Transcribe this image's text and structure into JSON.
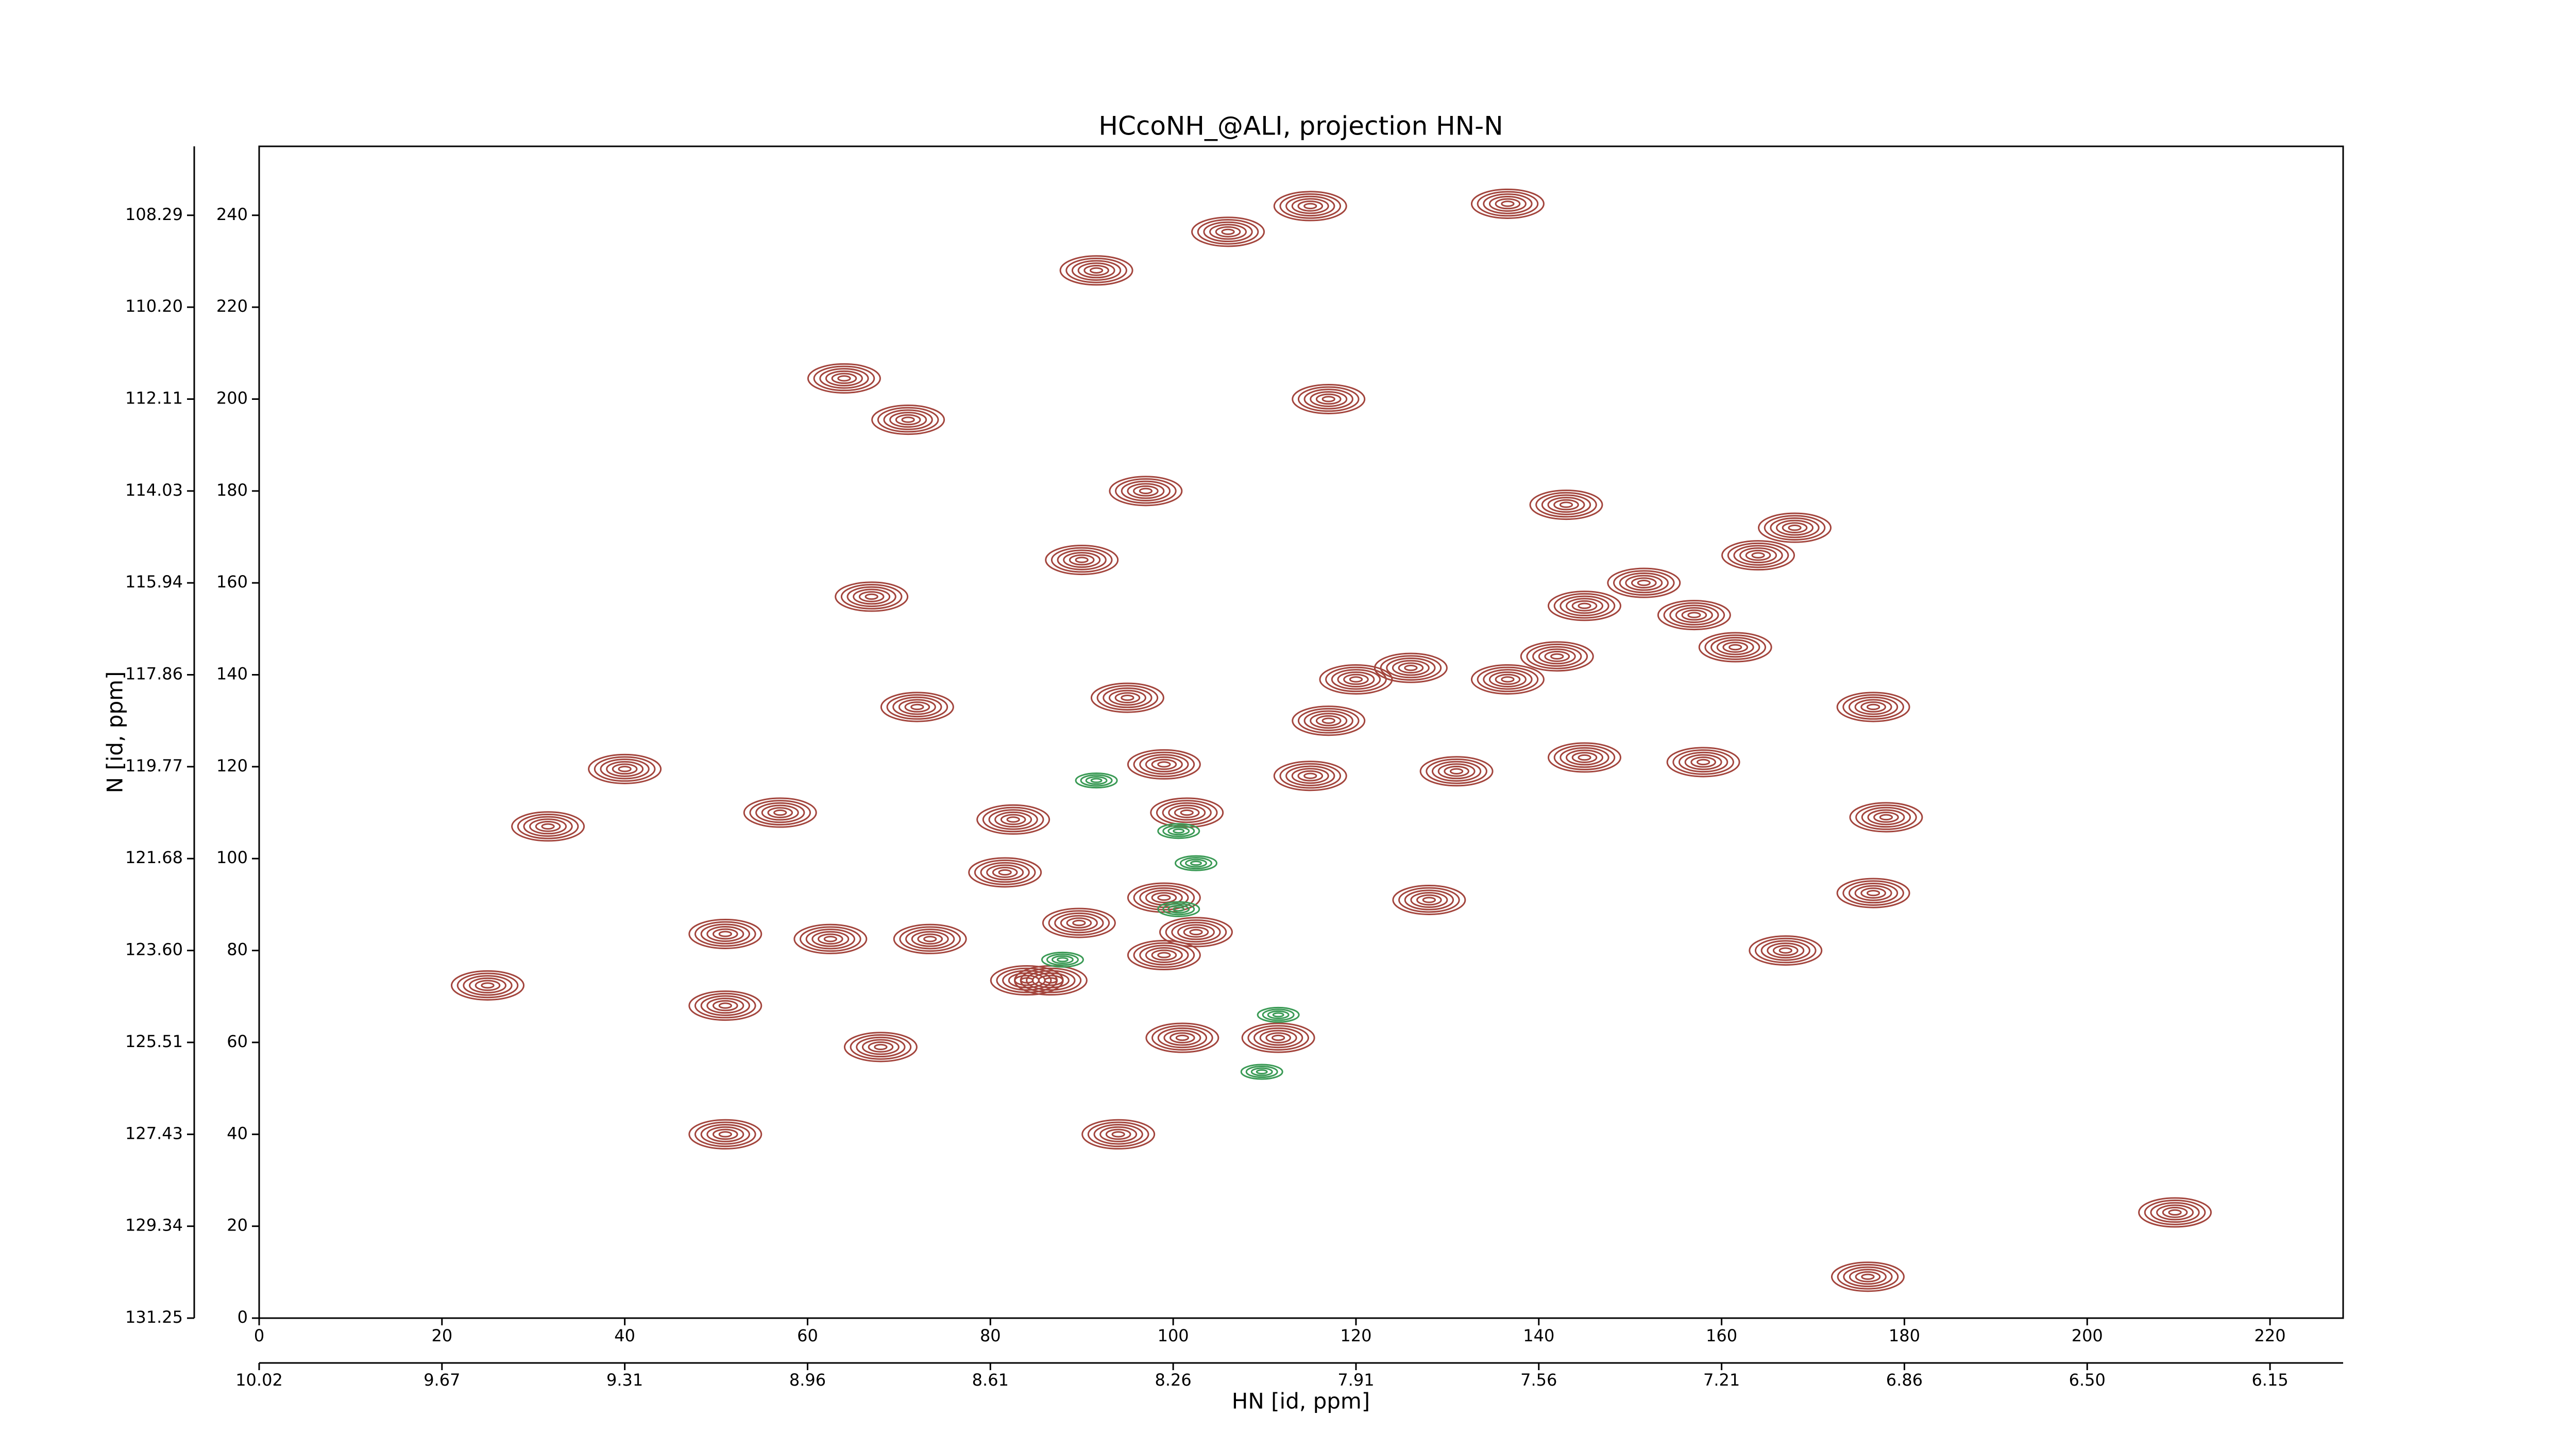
{
  "chart_data": {
    "type": "contour",
    "title": "HCcoNH_@ALI, projection HN-N",
    "xlabel": "HN [id, ppm]",
    "ylabel": "N [id, ppm]",
    "xlim": [
      0,
      228
    ],
    "ylim": [
      0,
      255
    ],
    "xticks": [
      0,
      20,
      40,
      60,
      80,
      100,
      120,
      140,
      160,
      180,
      200,
      220
    ],
    "yticks": [
      0,
      20,
      40,
      60,
      80,
      100,
      120,
      140,
      160,
      180,
      200,
      220,
      240
    ],
    "x2ticks": [
      {
        "value": 0,
        "label": "10.02"
      },
      {
        "value": 20,
        "label": "9.67"
      },
      {
        "value": 40,
        "label": "9.31"
      },
      {
        "value": 60,
        "label": "8.96"
      },
      {
        "value": 80,
        "label": "8.61"
      },
      {
        "value": 100,
        "label": "8.26"
      },
      {
        "value": 120,
        "label": "7.91"
      },
      {
        "value": 140,
        "label": "7.56"
      },
      {
        "value": 160,
        "label": "7.21"
      },
      {
        "value": 180,
        "label": "6.86"
      },
      {
        "value": 200,
        "label": "6.50"
      },
      {
        "value": 220,
        "label": "6.15"
      }
    ],
    "y2ticks": [
      {
        "value": 0,
        "label": "131.25"
      },
      {
        "value": 20,
        "label": "129.34"
      },
      {
        "value": 40,
        "label": "127.43"
      },
      {
        "value": 60,
        "label": "125.51"
      },
      {
        "value": 80,
        "label": "123.60"
      },
      {
        "value": 100,
        "label": "121.68"
      },
      {
        "value": 120,
        "label": "119.77"
      },
      {
        "value": 140,
        "label": "117.86"
      },
      {
        "value": 160,
        "label": "115.94"
      },
      {
        "value": 180,
        "label": "114.03"
      },
      {
        "value": 200,
        "label": "112.11"
      },
      {
        "value": 220,
        "label": "110.20"
      },
      {
        "value": 240,
        "label": "108.29"
      }
    ],
    "series": [
      {
        "color": "#a3453d",
        "x": [
          91.6,
          64,
          71,
          117,
          143,
          164,
          168,
          151.5,
          145,
          157,
          161.5,
          67,
          90,
          126,
          136.6,
          145,
          158,
          72,
          95,
          40,
          57,
          31.6,
          82.5,
          81.6,
          99,
          101.5,
          89.7,
          84,
          86.6,
          99,
          111.5,
          101,
          128,
          176.6,
          167,
          178,
          176.6,
          68,
          51,
          25,
          51,
          94,
          62.5,
          51,
          120,
          117,
          131,
          209.6,
          176,
          142,
          73.4,
          115,
          102.5,
          99,
          106,
          115,
          136.6,
          97
        ],
        "y": [
          228,
          204.5,
          195.5,
          200,
          177,
          166,
          172,
          160,
          155,
          153,
          146,
          157,
          165,
          141.5,
          139,
          122,
          121,
          133,
          135,
          119.5,
          110,
          107,
          108.5,
          97,
          120.5,
          110,
          86,
          73.5,
          73.5,
          79,
          61,
          61,
          91,
          92.5,
          80,
          109,
          133,
          59,
          68,
          72.4,
          40,
          40,
          82.5,
          83.6,
          139,
          130,
          119,
          23,
          9,
          144,
          82.5,
          118,
          84,
          91.5,
          236.4,
          242,
          242.5,
          180
        ]
      },
      {
        "color": "#3a9a55",
        "x": [
          100.6,
          102.5,
          100.6,
          111.5,
          109.7,
          87.9,
          91.6
        ],
        "y": [
          106,
          99,
          89,
          66,
          53.6,
          78,
          117
        ]
      }
    ]
  }
}
